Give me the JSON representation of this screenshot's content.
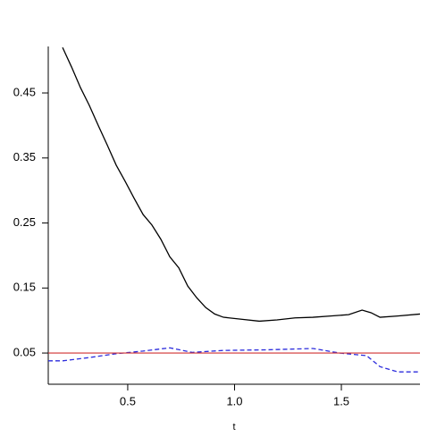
{
  "chart_data": {
    "type": "line",
    "xlabel": "t",
    "xlim": [
      0.128,
      1.868
    ],
    "ylim": [
      0.002,
      0.5215
    ],
    "xticks": [
      0.5,
      {
        "value": 1,
        "label": "1.0"
      },
      1.5
    ],
    "yticks": [
      0.05,
      0.15,
      0.25,
      0.35,
      0.45
    ],
    "hline": {
      "value": 0.05,
      "color": "#d03030"
    },
    "series": [
      {
        "color": "#000000",
        "dash": false,
        "x": [
          0.195,
          0.237,
          0.279,
          0.32,
          0.362,
          0.404,
          0.446,
          0.488,
          0.53,
          0.572,
          0.613,
          0.655,
          0.697,
          0.739,
          0.781,
          0.823,
          0.865,
          0.907,
          0.948,
          1.032,
          1.116,
          1.199,
          1.283,
          1.367,
          1.45,
          1.534,
          1.597,
          1.639,
          1.681,
          1.764,
          1.868
        ],
        "values": [
          0.52,
          0.49,
          0.458,
          0.431,
          0.4,
          0.37,
          0.339,
          0.314,
          0.288,
          0.263,
          0.247,
          0.225,
          0.198,
          0.181,
          0.153,
          0.135,
          0.12,
          0.11,
          0.105,
          0.102,
          0.099,
          0.101,
          0.104,
          0.105,
          0.107,
          0.109,
          0.116,
          0.112,
          0.105,
          0.107,
          0.11
        ]
      },
      {
        "color": "#2b2bdc",
        "dash": true,
        "x": [
          0.128,
          0.195,
          0.32,
          0.446,
          0.572,
          0.697,
          0.802,
          0.948,
          1.157,
          1.367,
          1.492,
          1.618,
          1.681,
          1.764,
          1.868
        ],
        "values": [
          0.038,
          0.038,
          0.043,
          0.049,
          0.053,
          0.058,
          0.051,
          0.054,
          0.055,
          0.057,
          0.05,
          0.046,
          0.029,
          0.021,
          0.021
        ]
      }
    ]
  }
}
